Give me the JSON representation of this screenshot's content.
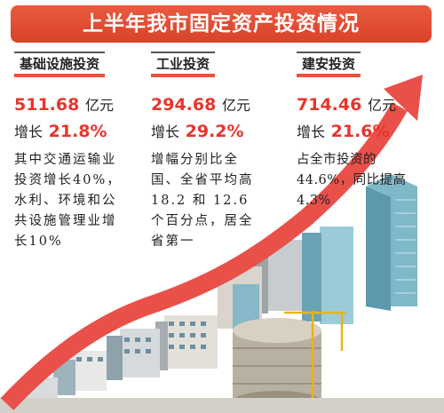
{
  "title": "上半年我市固定资产投资情况",
  "columns": [
    {
      "heading": "基础设施投资",
      "amount": "511.68",
      "unit": "亿元",
      "growth_label": "增长",
      "growth": "21.8%",
      "desc": "其中交通运输业投资增长40%，水利、环境和公共设施管理业增长10%"
    },
    {
      "heading": "工业投资",
      "amount": "294.68",
      "unit": "亿元",
      "growth_label": "增长",
      "growth": "29.2%",
      "desc": "增幅分别比全国、全省平均高 18.2 和 12.6 个百分点，居全省第一"
    },
    {
      "heading": "建安投资",
      "amount": "714.46",
      "unit": "亿元",
      "growth_label": "增长",
      "growth": "21.6%",
      "desc": "占全市投资的44.6%，同比提高4.3%"
    }
  ],
  "colors": {
    "accent": "#e8352a",
    "banner": "#e04a31",
    "arrow": "#e9504a"
  }
}
